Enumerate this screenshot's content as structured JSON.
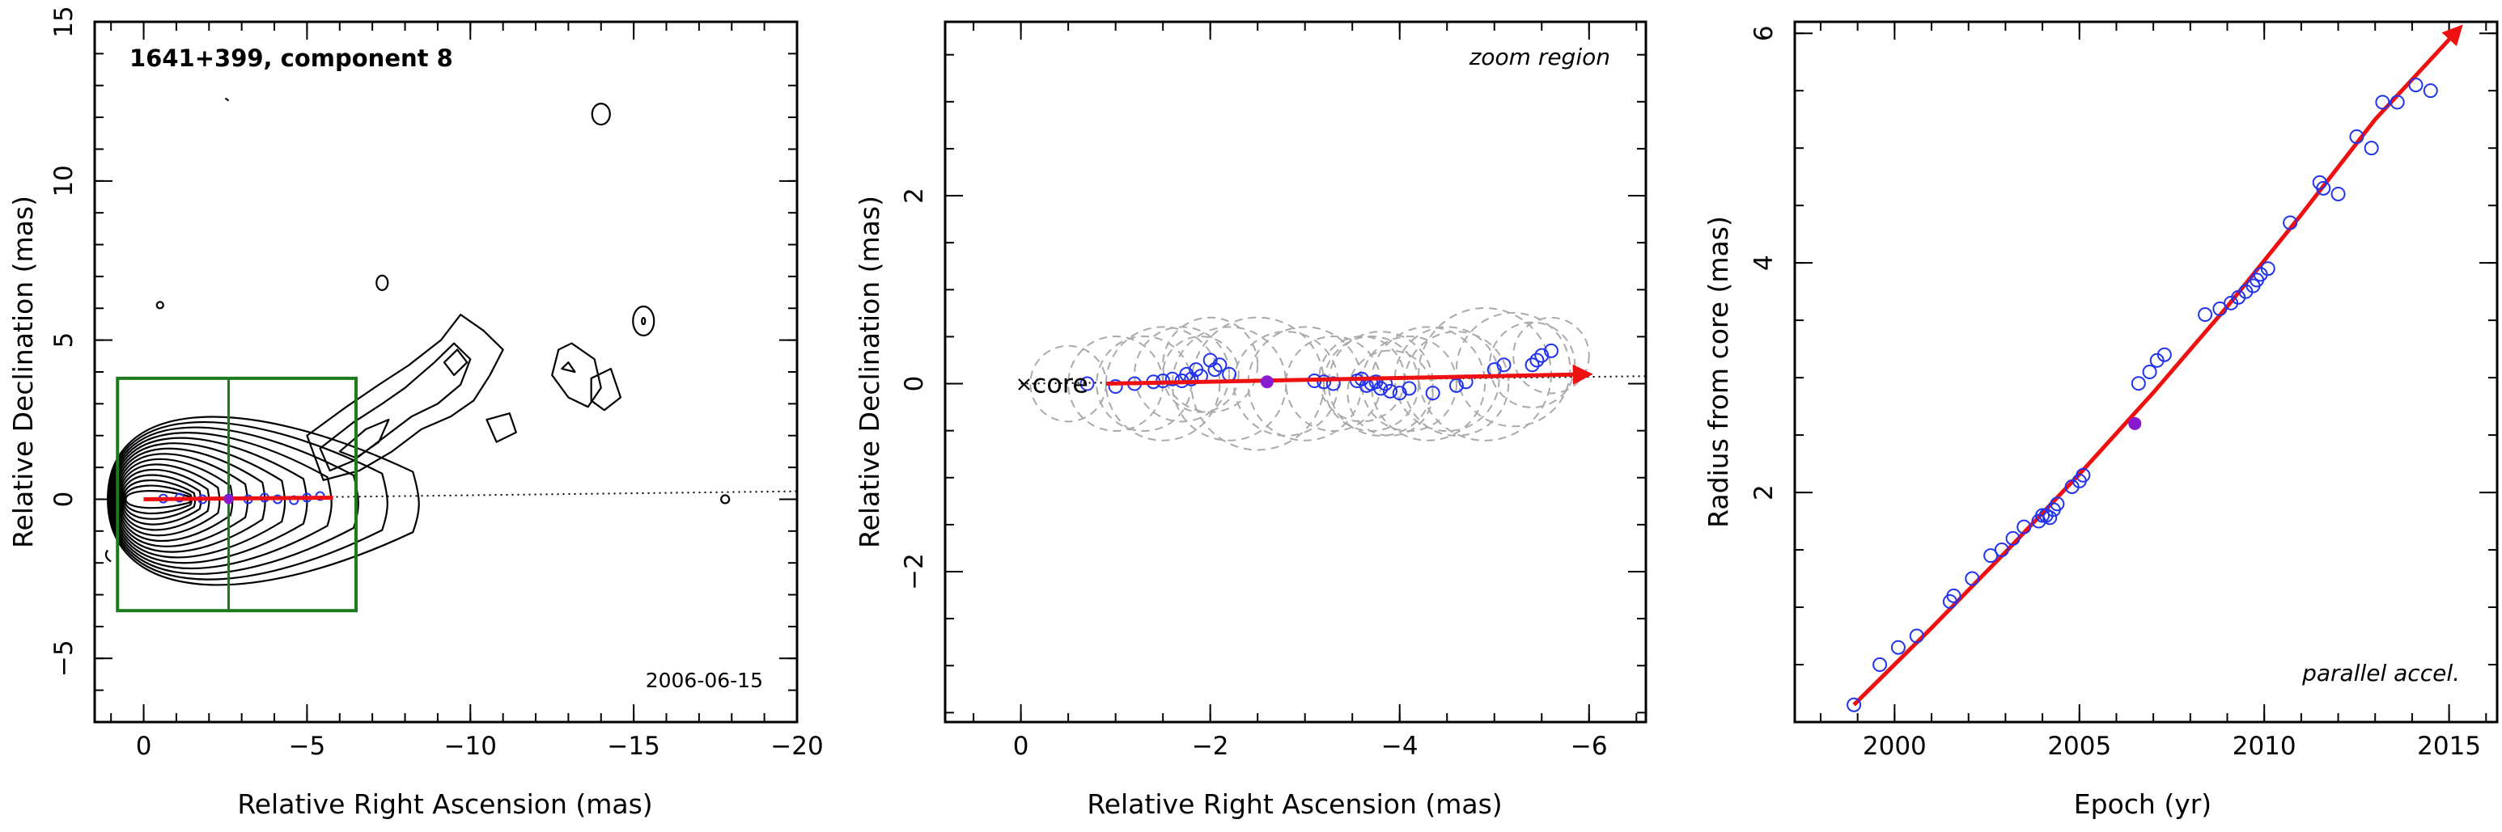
{
  "chart_data": [
    {
      "type": "contour",
      "title": "1641+399, component 8",
      "date": "2006-06-15",
      "xlabel": "Relative Right Ascension (mas)",
      "ylabel": "Relative Declination (mas)",
      "xlim": [
        1.5,
        -20
      ],
      "ylim": [
        -7,
        15
      ],
      "xticks": [
        0,
        -5,
        -10,
        -15,
        -20
      ],
      "yticks": [
        -5,
        0,
        5,
        10,
        15
      ],
      "zoom_box": {
        "x": [
          0.8,
          -6.5
        ],
        "y": [
          -3.5,
          3.8
        ],
        "marker_x": -2.6
      },
      "trajectory": {
        "x": [
          0,
          -5.8
        ],
        "y": [
          0,
          0.05
        ]
      },
      "direction_line": {
        "x": [
          0,
          -20
        ],
        "y": [
          0,
          0.25
        ]
      },
      "components": {
        "x": [
          -0.6,
          -1.1,
          -1.8,
          -2.6,
          -3.2,
          -3.7,
          -4.1,
          -4.6,
          -5.0,
          -5.4
        ],
        "y": [
          0.02,
          0.05,
          0.0,
          0.02,
          0.0,
          0.05,
          0.0,
          -0.03,
          0.05,
          0.1
        ]
      },
      "highlight": {
        "x": -2.6,
        "y": 0.0
      }
    },
    {
      "type": "scatter",
      "annotation": "zoom region",
      "core_label": "core",
      "xlabel": "Relative Right Ascension (mas)",
      "ylabel": "Relative Declination (mas)",
      "xlim": [
        0.8,
        -6.6
      ],
      "ylim": [
        -3.6,
        3.85
      ],
      "xticks": [
        0,
        -2,
        -4,
        -6
      ],
      "yticks": [
        -2,
        0,
        2
      ],
      "points": {
        "x": [
          -0.7,
          -1.0,
          -1.2,
          -1.4,
          -1.5,
          -1.6,
          -1.7,
          -1.75,
          -1.8,
          -1.85,
          -1.9,
          -2.0,
          -2.05,
          -2.1,
          -2.2,
          -3.1,
          -3.2,
          -3.3,
          -3.55,
          -3.6,
          -3.65,
          -3.7,
          -3.75,
          -3.8,
          -3.85,
          -3.9,
          -4.0,
          -4.1,
          -4.35,
          -4.6,
          -4.7,
          -5.0,
          -5.1,
          -5.4,
          -5.45,
          -5.5,
          -5.6
        ],
        "y": [
          0.0,
          -0.03,
          0.0,
          0.02,
          0.03,
          0.05,
          0.03,
          0.1,
          0.05,
          0.15,
          0.08,
          0.25,
          0.15,
          0.2,
          0.1,
          0.03,
          0.02,
          0.0,
          0.03,
          0.05,
          -0.02,
          0.0,
          0.02,
          -0.05,
          0.0,
          -0.08,
          -0.1,
          -0.05,
          -0.1,
          -0.02,
          0.02,
          0.15,
          0.2,
          0.2,
          0.25,
          0.3,
          0.35
        ]
      },
      "circle_sizes": [
        0.4,
        0.5,
        0.6,
        0.5,
        0.4,
        0.5,
        0.6,
        0.7,
        0.55,
        0.6,
        0.5,
        0.45,
        0.5,
        0.55,
        0.45,
        0.5,
        0.6,
        0.55,
        0.7,
        0.6,
        0.45,
        0.4,
        0.5,
        0.55
      ],
      "circle_centers": [
        [
          -0.5,
          0.0
        ],
        [
          -1.0,
          0.0
        ],
        [
          -1.5,
          0.0
        ],
        [
          -1.7,
          0.1
        ],
        [
          -1.9,
          0.1
        ],
        [
          -2.0,
          0.2
        ],
        [
          -2.2,
          0.0
        ],
        [
          -2.5,
          0.0
        ],
        [
          -2.8,
          0.0
        ],
        [
          -3.0,
          0.0
        ],
        [
          -3.3,
          0.0
        ],
        [
          -3.6,
          0.05
        ],
        [
          -3.7,
          0.0
        ],
        [
          -3.8,
          0.0
        ],
        [
          -3.9,
          -0.1
        ],
        [
          -4.1,
          0.0
        ],
        [
          -4.3,
          0.0
        ],
        [
          -4.6,
          0.0
        ],
        [
          -4.9,
          0.1
        ],
        [
          -5.2,
          0.15
        ],
        [
          -5.4,
          0.2
        ],
        [
          -5.6,
          0.3
        ],
        [
          -1.3,
          0.0
        ],
        [
          -4.5,
          0.05
        ]
      ],
      "highlight": {
        "x": -2.6,
        "y": 0.02
      },
      "trajectory": {
        "x": [
          -0.9,
          -6.0
        ],
        "y": [
          0.0,
          0.1
        ]
      },
      "direction_line": {
        "x": [
          0,
          -6.6
        ],
        "y": [
          0,
          0.08
        ]
      },
      "core_marker": {
        "x": 0,
        "y": 0
      }
    },
    {
      "type": "scatter",
      "annotation": "parallel accel.",
      "xlabel": "Epoch (yr)",
      "ylabel": "Radius from core (mas)",
      "xlim": [
        1997.3,
        2016.3
      ],
      "ylim": [
        0,
        6.1
      ],
      "xticks": [
        2000,
        2005,
        2010,
        2015
      ],
      "yticks": [
        2,
        4,
        6
      ],
      "points": {
        "x": [
          1998.9,
          1999.6,
          2000.1,
          2000.6,
          2001.5,
          2001.6,
          2002.1,
          2002.6,
          2002.9,
          2003.2,
          2003.5,
          2003.9,
          2004.0,
          2004.1,
          2004.2,
          2004.3,
          2004.4,
          2004.8,
          2005.0,
          2005.1,
          2006.6,
          2006.9,
          2007.1,
          2007.3,
          2008.4,
          2008.8,
          2009.1,
          2009.3,
          2009.5,
          2009.7,
          2009.8,
          2009.9,
          2010.1,
          2010.7,
          2011.5,
          2011.6,
          2012.0,
          2012.5,
          2012.9,
          2013.2,
          2013.6,
          2014.1,
          2014.5
        ],
        "y": [
          0.15,
          0.5,
          0.65,
          0.75,
          1.05,
          1.1,
          1.25,
          1.45,
          1.5,
          1.6,
          1.7,
          1.75,
          1.8,
          1.8,
          1.78,
          1.85,
          1.9,
          2.05,
          2.1,
          2.15,
          2.95,
          3.05,
          3.15,
          3.2,
          3.55,
          3.6,
          3.65,
          3.7,
          3.75,
          3.8,
          3.85,
          3.9,
          3.95,
          4.35,
          4.7,
          4.65,
          4.6,
          5.1,
          5.0,
          5.4,
          5.4,
          5.55,
          5.5
        ]
      },
      "highlight": {
        "x": 2006.5,
        "y": 2.6
      },
      "fit": {
        "x": [
          1998.9,
          2001,
          2003,
          2005,
          2007,
          2009,
          2011,
          2013,
          2015.3
        ],
        "y": [
          0.15,
          0.82,
          1.48,
          2.16,
          2.87,
          3.62,
          4.42,
          5.25,
          6.05
        ]
      }
    }
  ]
}
